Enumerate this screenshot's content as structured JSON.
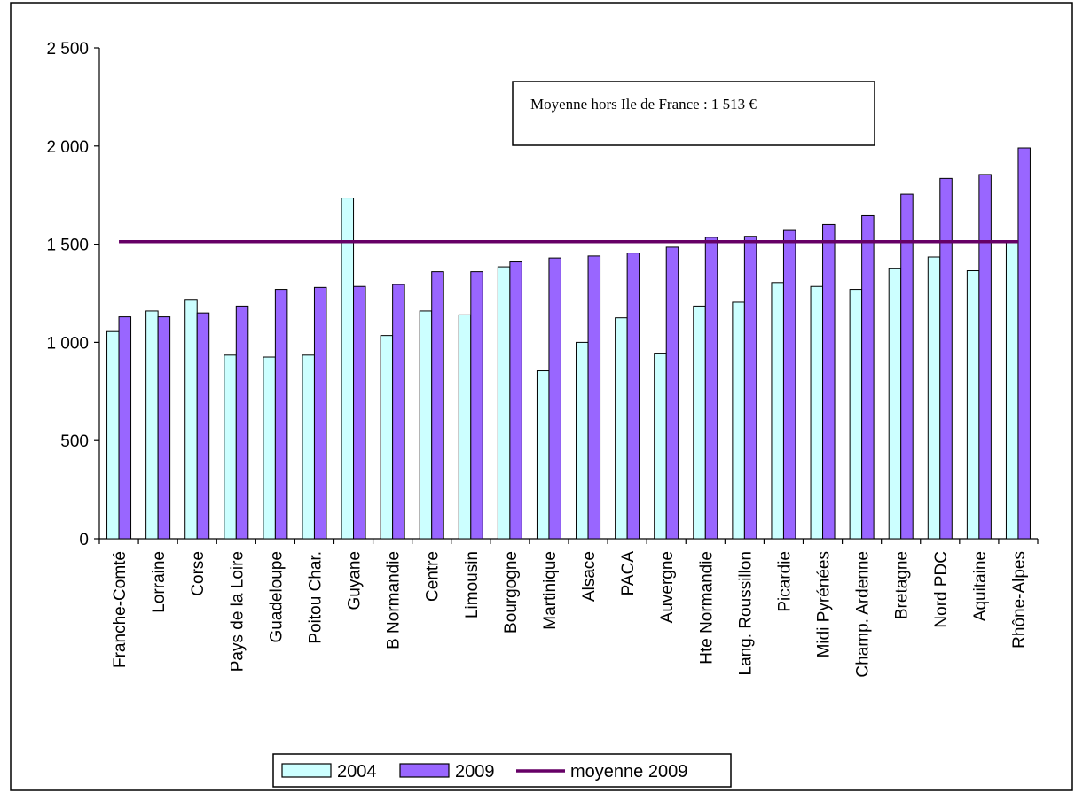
{
  "colors": {
    "series_2004": "#ccffff",
    "series_2009": "#9966ff",
    "average_line": "#660066",
    "bar_stroke": "#000000",
    "axis": "#000000",
    "frame": "#000000"
  },
  "annotation": {
    "text": "Moyenne hors Ile de France : 1 513 €"
  },
  "legend": {
    "placement": "bottom-center",
    "items": [
      {
        "label": "2004",
        "kind": "bar",
        "color": "#ccffff"
      },
      {
        "label": "2009",
        "kind": "bar",
        "color": "#9966ff"
      },
      {
        "label": "moyenne 2009",
        "kind": "line",
        "color": "#660066"
      }
    ]
  },
  "chart_data": {
    "type": "bar",
    "title": "",
    "xlabel": "",
    "ylabel": "",
    "ylim": [
      0,
      2500
    ],
    "yticks": [
      0,
      500,
      1000,
      1500,
      2000,
      2500
    ],
    "ytick_labels": [
      "0",
      "500",
      "1 000",
      "1 500",
      "2 000",
      "2 500"
    ],
    "grid": false,
    "legend_position": "bottom",
    "categories": [
      "Franche-Comté",
      "Lorraine",
      "Corse",
      "Pays de la Loire",
      "Guadeloupe",
      "Poitou Char.",
      "Guyane",
      "B Normandie",
      "Centre",
      "Limousin",
      "Bourgogne",
      "Martinique",
      "Alsace",
      "PACA",
      "Auvergne",
      "Hte Normandie",
      "Lang. Roussillon",
      "Picardie",
      "Midi Pyrénées",
      "Champ. Ardenne",
      "Bretagne",
      "Nord PDC",
      "Aquitaine",
      "Rhône-Alpes"
    ],
    "series": [
      {
        "name": "2004",
        "type": "bar",
        "values": [
          1055,
          1160,
          1215,
          935,
          925,
          935,
          1735,
          1035,
          1160,
          1140,
          1385,
          855,
          1000,
          1125,
          945,
          1185,
          1205,
          1305,
          1285,
          1270,
          1375,
          1435,
          1365,
          1513
        ]
      },
      {
        "name": "2009",
        "type": "bar",
        "values": [
          1130,
          1130,
          1150,
          1185,
          1270,
          1280,
          1285,
          1295,
          1360,
          1360,
          1410,
          1430,
          1440,
          1455,
          1485,
          1535,
          1540,
          1570,
          1600,
          1645,
          1755,
          1835,
          1855,
          1990
        ]
      },
      {
        "name": "moyenne 2009",
        "type": "line",
        "value": 1513
      }
    ]
  }
}
